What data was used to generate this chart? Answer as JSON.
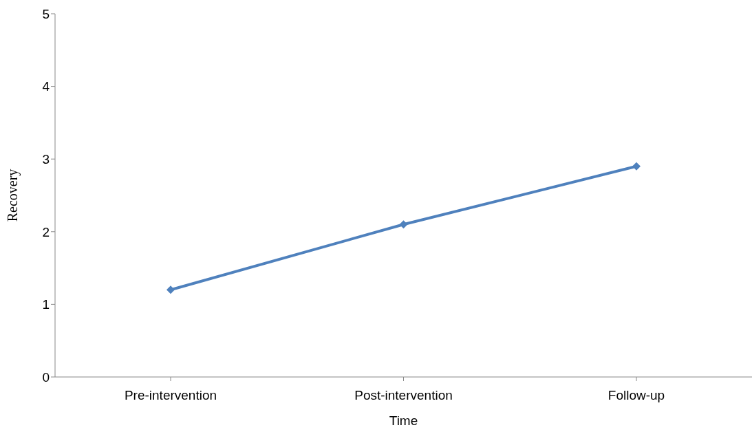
{
  "chart_data": {
    "type": "line",
    "xlabel": "Time",
    "ylabel": "Recovery",
    "categories": [
      "Pre-intervention",
      "Post-intervention",
      "Follow-up"
    ],
    "series": [
      {
        "color": "#4f81bd",
        "values": [
          1.2,
          2.1,
          2.9
        ]
      }
    ],
    "ylim": [
      0,
      5
    ],
    "yticks": [
      0,
      1,
      2,
      3,
      4,
      5
    ],
    "grid": false,
    "legend": false,
    "marker": "diamond",
    "line_style": "solid"
  }
}
